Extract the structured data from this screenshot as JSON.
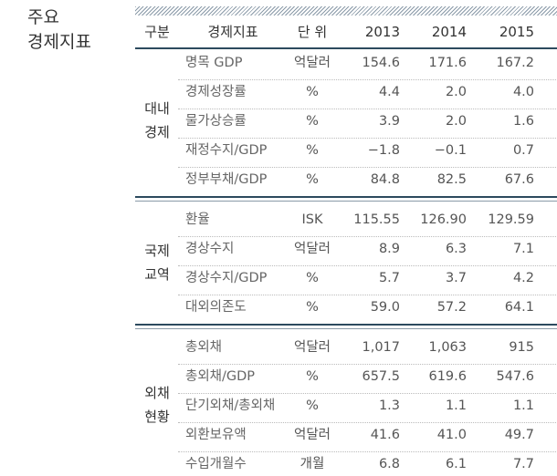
{
  "title": [
    "주요",
    "경제지표"
  ],
  "header": [
    "구분",
    "경제지표",
    "단 위",
    "2013",
    "2014",
    "2015"
  ],
  "groups": [
    {
      "label": [
        "대내",
        "경제"
      ],
      "rows": [
        [
          "명목 GDP",
          "억달러",
          "154.6",
          "171.6",
          "167.2"
        ],
        [
          "경제성장률",
          "%",
          "4.4",
          "2.0",
          "4.0"
        ],
        [
          "물가상승률",
          "%",
          "3.9",
          "2.0",
          "1.6"
        ],
        [
          "재정수지/GDP",
          "%",
          "−1.8",
          "−0.1",
          "0.7"
        ],
        [
          "정부부채/GDP",
          "%",
          "84.8",
          "82.5",
          "67.6"
        ]
      ]
    },
    {
      "label": [
        "국제",
        "교역"
      ],
      "rows": [
        [
          "환율",
          "ISK",
          "115.55",
          "126.90",
          "129.59"
        ],
        [
          "경상수지",
          "억달러",
          "8.9",
          "6.3",
          "7.1"
        ],
        [
          "경상수지/GDP",
          "%",
          "5.7",
          "3.7",
          "4.2"
        ],
        [
          "대외의존도",
          "%",
          "59.0",
          "57.2",
          "64.1"
        ]
      ]
    },
    {
      "label": [
        "외채",
        "현황"
      ],
      "rows": [
        [
          "총외채",
          "억달러",
          "1,017",
          "1,063",
          "915"
        ],
        [
          "총외채/GDP",
          "%",
          "657.5",
          "619.6",
          "547.6"
        ],
        [
          "단기외채/총외채",
          "%",
          "1.3",
          "1.1",
          "1.1"
        ],
        [
          "외환보유액",
          "억달러",
          "41.6",
          "41.0",
          "49.7"
        ],
        [
          "수입개월수",
          "개월",
          "6.8",
          "6.1",
          "7.7"
        ]
      ]
    }
  ]
}
